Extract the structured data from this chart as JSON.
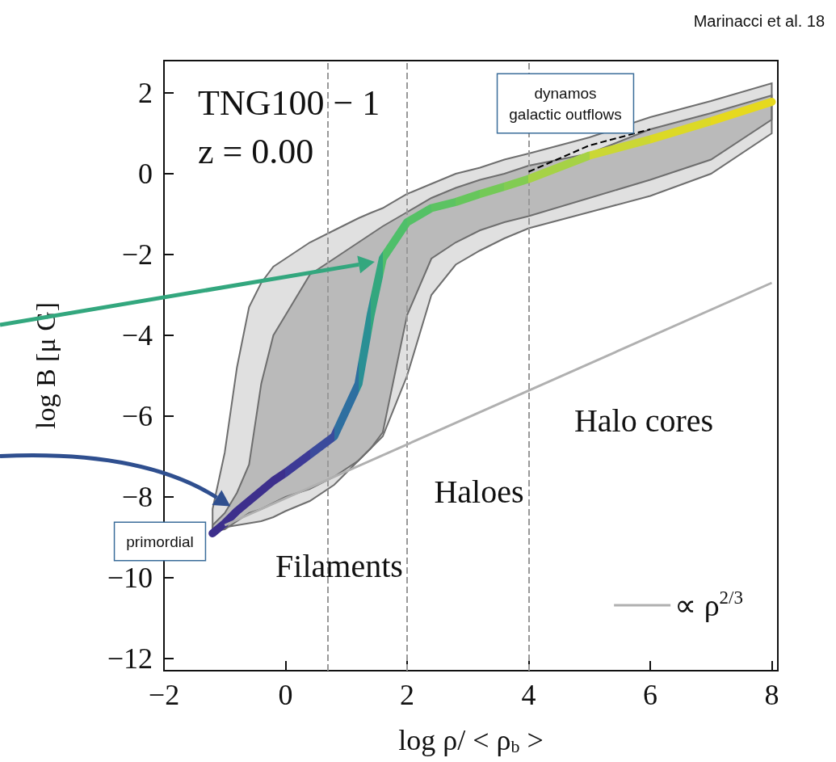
{
  "chart_data": {
    "type": "line",
    "xlabel": "log ρ/ < ρ$_{b}$ >",
    "ylabel": "log B [μ G]",
    "xlim": [
      -2,
      8.1
    ],
    "xticks": [
      -2,
      0,
      2,
      4,
      6,
      8
    ],
    "ylim": [
      -12.3,
      2.8
    ],
    "yticks": [
      -12,
      -10,
      -8,
      -6,
      -4,
      -2,
      0,
      2
    ],
    "legend": "bottom right",
    "marker": "none",
    "series": [
      {
        "color": "#000000",
        "line_style": "dashed",
        "x": [
          -1.2,
          -1,
          -0.8,
          -0.6,
          -0.4,
          -0.2,
          0,
          0.4,
          0.8,
          1.2,
          1.4,
          1.6,
          2,
          2.4,
          2.8,
          3.2,
          3.6,
          4,
          5,
          6,
          7,
          8
        ],
        "values": [
          null,
          null,
          null,
          null,
          null,
          null,
          null,
          null,
          null,
          null,
          null,
          null,
          null,
          null,
          null,
          null,
          null,
          0.05,
          0.7,
          1.1,
          null,
          null
        ],
        "lower": [
          -8.8,
          -8.75,
          -8.7,
          -8.65,
          -8.6,
          -8.5,
          -8.35,
          -8.1,
          -7.7,
          -7.1,
          -6.8,
          -6.5,
          -5.0,
          -3.0,
          -2.25,
          -1.9,
          -1.6,
          -1.35,
          -0.95,
          -0.55,
          0,
          1.0
        ],
        "upper": [
          -8.3,
          -6.9,
          -4.8,
          -3.3,
          -2.7,
          -2.3,
          -2.1,
          -1.7,
          -1.4,
          -1.1,
          -0.97,
          -0.85,
          -0.5,
          -0.25,
          0,
          0.15,
          0.35,
          0.5,
          0.9,
          1.4,
          1.8,
          2.24
        ]
      },
      {
        "x": [
          -1.2,
          -1,
          -0.8,
          -0.6,
          -0.4,
          -0.2,
          0,
          0.4,
          0.8,
          1.2,
          1.4,
          1.6,
          2,
          2.4,
          2.8,
          3.2,
          3.6,
          4,
          5,
          6,
          7,
          8
        ],
        "values": [
          -8.9,
          -8.65,
          -8.35,
          -8.1,
          -7.85,
          -7.6,
          -7.4,
          -6.95,
          -6.5,
          -5.2,
          -3.5,
          -2.1,
          -1.2,
          -0.85,
          -0.7,
          -0.5,
          -0.32,
          -0.13,
          0.45,
          0.85,
          1.3,
          1.78
        ],
        "colors": [
          "#3d2f8c",
          "#3d2f8c",
          "#3d2f8c",
          "#3d2f8c",
          "#3d2f8c",
          "#3d2f8c",
          "#3d2f8c",
          "#3d3a96",
          "#3b4b9c",
          "#2e6fa0",
          "#2a8f94",
          "#33a77e",
          "#4fbf6a",
          "#55c166",
          "#5cc362",
          "#66c65c",
          "#74c957",
          "#82cc52",
          "#a6d246",
          "#cbd734",
          "#dcd926",
          "#e6d91e"
        ],
        "lower": [
          -8.85,
          -8.8,
          -8.6,
          -8.4,
          -8.3,
          -8.15,
          -8.0,
          -7.8,
          -7.5,
          -7.1,
          -6.8,
          -6.4,
          -3.5,
          -2.1,
          -1.7,
          -1.4,
          -1.2,
          -1.05,
          -0.6,
          -0.15,
          0.35,
          1.34
        ],
        "upper": [
          -8.7,
          -8.4,
          -7.9,
          -7.2,
          -5.2,
          -4.0,
          -3.5,
          -2.5,
          -2.1,
          -1.7,
          -1.5,
          -1.3,
          -0.95,
          -0.6,
          -0.35,
          -0.15,
          0,
          0.2,
          0.5,
          1.1,
          1.5,
          1.94
        ]
      },
      {
        "name": "∝ ρ$^{2/3}$",
        "color": "#b0b0b0",
        "x": [
          -1,
          8
        ],
        "values": [
          -8.7,
          -2.7
        ]
      }
    ],
    "ref_lines": [
      {
        "axis": "x",
        "value": 0.7,
        "line_style": "dashed",
        "color": "#999999"
      },
      {
        "axis": "x",
        "value": 2,
        "line_style": "dashed",
        "color": "#999999"
      },
      {
        "axis": "x",
        "value": 4,
        "line_style": "dashed",
        "color": "#999999"
      }
    ],
    "annotations": [
      "Marinacci et al. 18",
      "TNG100 − 1",
      "z = 0.00",
      "primordial",
      "dynamos\ngalactic outflows",
      "Filaments",
      "Haloes",
      "Halo cores"
    ]
  }
}
